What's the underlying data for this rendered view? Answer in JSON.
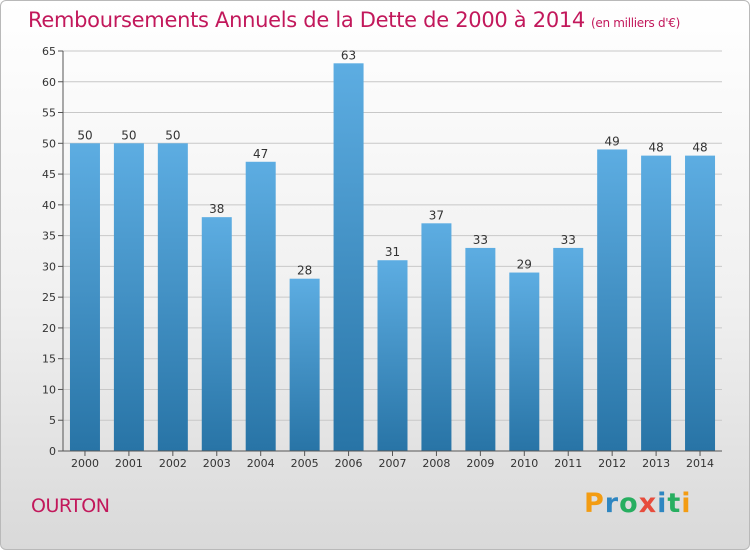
{
  "title": "Remboursements Annuels de la Dette de 2000 à 2014",
  "unit": "(en milliers d'€)",
  "town": "OURTON",
  "logo": {
    "letters": [
      "P",
      "r",
      "o",
      "x",
      "i",
      "t",
      "i"
    ],
    "colors": [
      "#f39c12",
      "#2e86c1",
      "#27ae60",
      "#e74c3c",
      "#2e86c1",
      "#27ae60",
      "#f39c12"
    ]
  },
  "colors": {
    "title": "#c2185b",
    "bar_light": "#5dade2",
    "bar_dark": "#2874a6"
  },
  "chart_data": {
    "type": "bar",
    "title": "Remboursements Annuels de la Dette de 2000 à 2014",
    "ylabel": "en milliers d'€",
    "categories": [
      "2000",
      "2001",
      "2002",
      "2003",
      "2004",
      "2005",
      "2006",
      "2007",
      "2008",
      "2009",
      "2010",
      "2011",
      "2012",
      "2013",
      "2014"
    ],
    "values": [
      50,
      50,
      50,
      38,
      47,
      28,
      63,
      31,
      37,
      33,
      29,
      33,
      49,
      48,
      48
    ],
    "ylim": [
      0,
      65
    ],
    "yticks": [
      0,
      5,
      10,
      15,
      20,
      25,
      30,
      35,
      40,
      45,
      50,
      55,
      60,
      65
    ],
    "grid": true
  }
}
